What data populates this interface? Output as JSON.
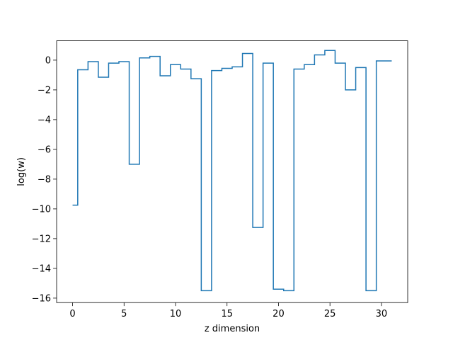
{
  "chart_data": {
    "type": "line",
    "drawstyle": "steps-mid",
    "title": "",
    "xlabel": "z dimension",
    "ylabel": "log(w)",
    "xlim": [
      -1.55,
      32.55
    ],
    "ylim": [
      -16.3,
      1.3
    ],
    "xticks": [
      0,
      5,
      10,
      15,
      20,
      25,
      30
    ],
    "yticks": [
      0,
      -2,
      -4,
      -6,
      -8,
      -10,
      -12,
      -14,
      -16
    ],
    "xtick_labels": [
      "0",
      "5",
      "10",
      "15",
      "20",
      "25",
      "30"
    ],
    "ytick_labels": [
      "0",
      "−2",
      "−4",
      "−6",
      "−8",
      "−10",
      "−12",
      "−14",
      "−16"
    ],
    "grid": false,
    "line_color": "#1f77b4",
    "series": [
      {
        "x": [
          0,
          1,
          2,
          3,
          4,
          5,
          6,
          7,
          8,
          9,
          10,
          11,
          12,
          13,
          14,
          15,
          16,
          17,
          18,
          19,
          20,
          21,
          22,
          23,
          24,
          25,
          26,
          27,
          28,
          29,
          30,
          31
        ],
        "values": [
          -9.75,
          -0.65,
          -0.1,
          -1.15,
          -0.2,
          -0.1,
          -7.0,
          0.15,
          0.25,
          -1.05,
          -0.3,
          -0.6,
          -1.25,
          -15.5,
          -0.7,
          -0.55,
          -0.45,
          0.45,
          -11.25,
          -0.2,
          -15.4,
          -15.5,
          -0.6,
          -0.3,
          0.35,
          0.65,
          -0.2,
          -2.0,
          -0.5,
          -15.5,
          -0.05,
          -0.05
        ]
      }
    ]
  }
}
